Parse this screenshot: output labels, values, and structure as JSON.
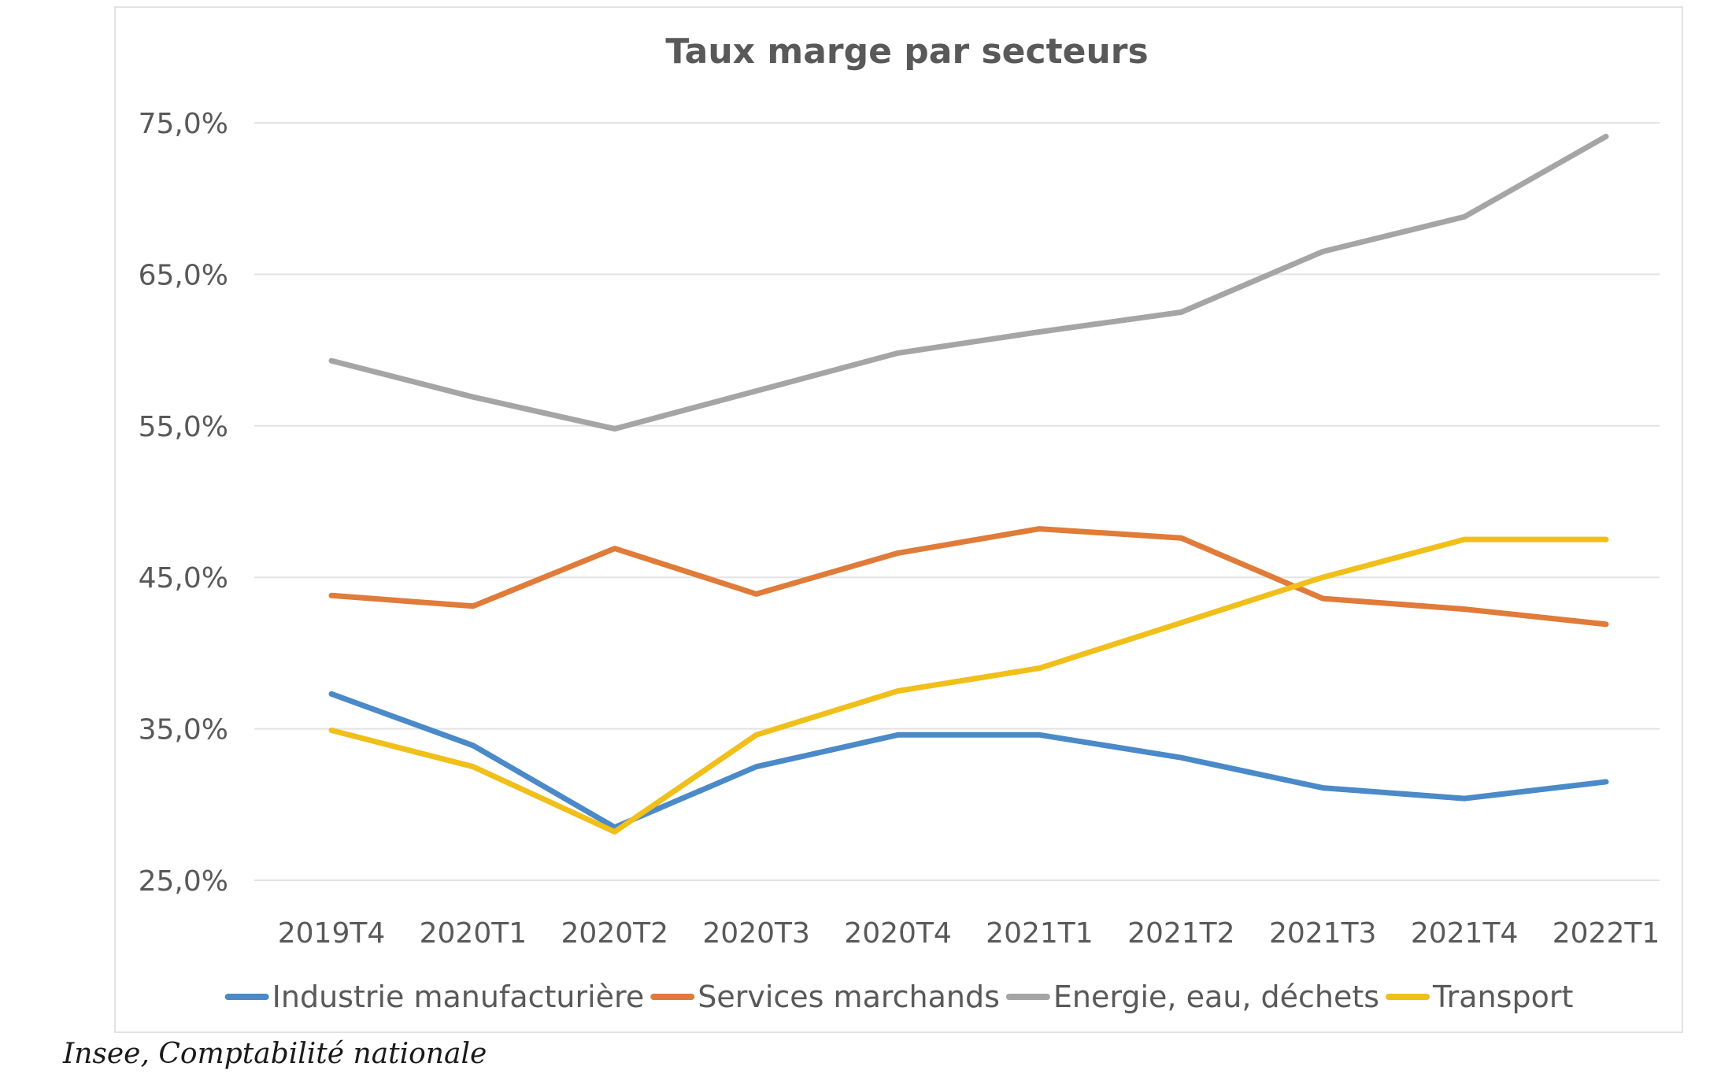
{
  "chart_data": {
    "type": "line",
    "title": "Taux marge par secteurs",
    "xlabel": "",
    "ylabel": "",
    "categories": [
      "2019T4",
      "2020T1",
      "2020T2",
      "2020T3",
      "2020T4",
      "2021T1",
      "2021T2",
      "2021T3",
      "2021T4",
      "2022T1"
    ],
    "ylim": [
      25,
      75
    ],
    "yticks": [
      25,
      35,
      45,
      55,
      65,
      75
    ],
    "ytick_labels": [
      "25,0%",
      "35,0%",
      "45,0%",
      "55,0%",
      "65,0%",
      "75,0%"
    ],
    "grid": true,
    "legend_position": "bottom",
    "series": [
      {
        "name": "Industrie manufacturière",
        "color": "#4a8ac8",
        "values": [
          37.3,
          33.9,
          28.5,
          32.5,
          34.6,
          34.6,
          33.1,
          31.1,
          30.4,
          31.5
        ]
      },
      {
        "name": "Services marchands",
        "color": "#e07b39",
        "values": [
          43.8,
          43.1,
          46.9,
          43.9,
          46.6,
          48.2,
          47.6,
          43.6,
          42.9,
          41.9
        ]
      },
      {
        "name": "Energie, eau, déchets",
        "color": "#a5a5a5",
        "values": [
          59.3,
          56.9,
          54.8,
          57.3,
          59.8,
          61.2,
          62.5,
          66.5,
          68.8,
          74.1
        ]
      },
      {
        "name": "Transport",
        "color": "#f0bf1a",
        "values": [
          34.9,
          32.5,
          28.2,
          34.6,
          37.5,
          39.0,
          42.0,
          45.0,
          47.5,
          47.5
        ]
      }
    ]
  },
  "caption": "Insee, Comptabilité nationale"
}
